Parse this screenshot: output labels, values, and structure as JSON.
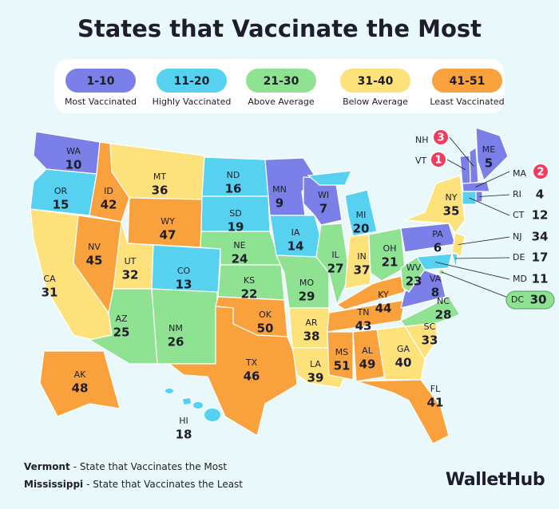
{
  "title": "States that Vaccinate the Most",
  "legend": [
    {
      "range": "1-10",
      "label": "Most Vaccinated",
      "color": "#7a80e8"
    },
    {
      "range": "11-20",
      "label": "Highly Vaccinated",
      "color": "#56d2f0"
    },
    {
      "range": "21-30",
      "label": "Above Average",
      "color": "#90e293"
    },
    {
      "range": "31-40",
      "label": "Below Average",
      "color": "#fde27c"
    },
    {
      "range": "41-51",
      "label": "Least Vaccinated",
      "color": "#f9a23d"
    }
  ],
  "states": [
    {
      "abbr": "WA",
      "rank": 10
    },
    {
      "abbr": "OR",
      "rank": 15
    },
    {
      "abbr": "CA",
      "rank": 31
    },
    {
      "abbr": "NV",
      "rank": 45
    },
    {
      "abbr": "ID",
      "rank": 42
    },
    {
      "abbr": "MT",
      "rank": 36
    },
    {
      "abbr": "WY",
      "rank": 47
    },
    {
      "abbr": "UT",
      "rank": 32
    },
    {
      "abbr": "AZ",
      "rank": 25
    },
    {
      "abbr": "CO",
      "rank": 13
    },
    {
      "abbr": "NM",
      "rank": 26
    },
    {
      "abbr": "ND",
      "rank": 16
    },
    {
      "abbr": "SD",
      "rank": 19
    },
    {
      "abbr": "NE",
      "rank": 24
    },
    {
      "abbr": "KS",
      "rank": 22
    },
    {
      "abbr": "OK",
      "rank": 50
    },
    {
      "abbr": "TX",
      "rank": 46
    },
    {
      "abbr": "MN",
      "rank": 9
    },
    {
      "abbr": "IA",
      "rank": 14
    },
    {
      "abbr": "MO",
      "rank": 29
    },
    {
      "abbr": "AR",
      "rank": 38
    },
    {
      "abbr": "LA",
      "rank": 39
    },
    {
      "abbr": "WI",
      "rank": 7
    },
    {
      "abbr": "IL",
      "rank": 27
    },
    {
      "abbr": "MI",
      "rank": 20
    },
    {
      "abbr": "IN",
      "rank": 37
    },
    {
      "abbr": "OH",
      "rank": 21
    },
    {
      "abbr": "KY",
      "rank": 44
    },
    {
      "abbr": "TN",
      "rank": 43
    },
    {
      "abbr": "MS",
      "rank": 51
    },
    {
      "abbr": "AL",
      "rank": 49
    },
    {
      "abbr": "GA",
      "rank": 40
    },
    {
      "abbr": "FL",
      "rank": 41
    },
    {
      "abbr": "SC",
      "rank": 33
    },
    {
      "abbr": "NC",
      "rank": 28
    },
    {
      "abbr": "VA",
      "rank": 8
    },
    {
      "abbr": "WV",
      "rank": 23
    },
    {
      "abbr": "PA",
      "rank": 6
    },
    {
      "abbr": "NY",
      "rank": 35
    },
    {
      "abbr": "ME",
      "rank": 5
    },
    {
      "abbr": "NH",
      "rank": 3
    },
    {
      "abbr": "VT",
      "rank": 1
    },
    {
      "abbr": "MA",
      "rank": 2
    },
    {
      "abbr": "RI",
      "rank": 4
    },
    {
      "abbr": "CT",
      "rank": 12
    },
    {
      "abbr": "NJ",
      "rank": 34
    },
    {
      "abbr": "DE",
      "rank": 17
    },
    {
      "abbr": "MD",
      "rank": 11
    },
    {
      "abbr": "DC",
      "rank": 30
    },
    {
      "abbr": "AK",
      "rank": 48
    },
    {
      "abbr": "HI",
      "rank": 18
    }
  ],
  "notes": [
    {
      "name": "Vermont",
      "text": "- State that Vaccinates the Most"
    },
    {
      "name": "Mississippi",
      "text": "- State that Vaccinates the Least"
    }
  ],
  "brand": "WalletHub"
}
